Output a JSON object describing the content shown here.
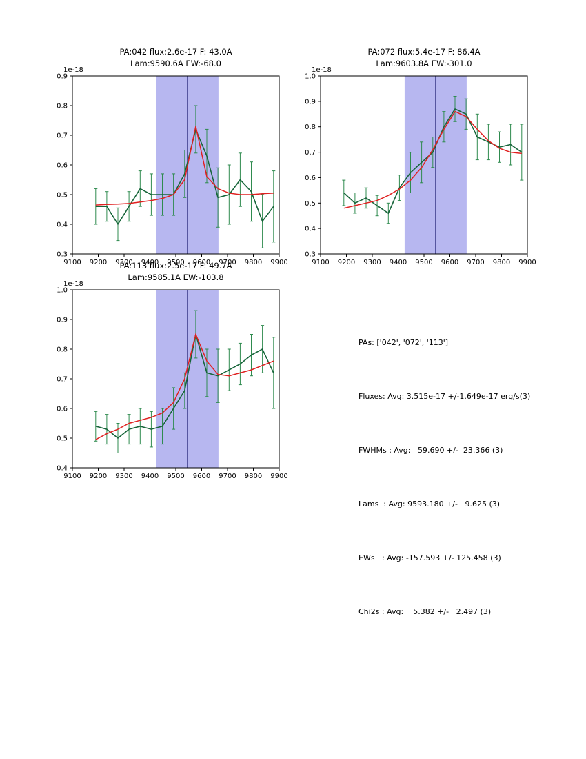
{
  "figure": {
    "background": "#ffffff"
  },
  "colors": {
    "band": "#b7b7f0",
    "vline": "#16166b",
    "data": "#17653a",
    "err": "#2f8b4f",
    "fit": "#e02020",
    "axis": "#000000"
  },
  "stats": {
    "lines": [
      "PAs: ['042', '072', '113']",
      "Fluxes: Avg: 3.515e-17 +/-1.649e-17 erg/s(3)",
      "FWHMs : Avg:   59.690 +/-  23.366 (3)",
      "Lams  : Avg: 9593.180 +/-   9.625 (3)",
      "EWs   : Avg: -157.593 +/- 125.458 (3)",
      "Chi2s : Avg:    5.382 +/-   2.497 (3)"
    ]
  },
  "chart_data": [
    {
      "type": "line",
      "title1": "PA:042 flux:2.6e-17 F: 43.0A",
      "title2": "Lam:9590.6A EW:-68.0",
      "offset_label": "1e-18",
      "xlim": [
        9100,
        9900
      ],
      "ylim": [
        0.3,
        0.9
      ],
      "xticks": [
        9100,
        9200,
        9300,
        9400,
        9500,
        9600,
        9700,
        9800,
        9900
      ],
      "yticks": [
        0.3,
        0.4,
        0.5,
        0.6,
        0.7,
        0.8,
        0.9
      ],
      "band": [
        9425,
        9665
      ],
      "vline": 9545,
      "x": [
        9190,
        9233,
        9276,
        9319,
        9362,
        9405,
        9448,
        9491,
        9534,
        9577,
        9620,
        9663,
        9706,
        9749,
        9792,
        9835,
        9878
      ],
      "series": [
        {
          "name": "spectrum",
          "values": [
            0.46,
            0.46,
            0.4,
            0.46,
            0.52,
            0.5,
            0.5,
            0.5,
            0.57,
            0.72,
            0.63,
            0.49,
            0.5,
            0.55,
            0.51,
            0.41,
            0.46
          ],
          "yerr": [
            0.06,
            0.05,
            0.055,
            0.05,
            0.06,
            0.07,
            0.07,
            0.07,
            0.08,
            0.08,
            0.09,
            0.1,
            0.1,
            0.09,
            0.1,
            0.09,
            0.12
          ]
        },
        {
          "name": "fit",
          "values": [
            0.465,
            0.467,
            0.468,
            0.47,
            0.475,
            0.48,
            0.487,
            0.5,
            0.55,
            0.73,
            0.56,
            0.52,
            0.505,
            0.5,
            0.5,
            0.503,
            0.505
          ]
        }
      ]
    },
    {
      "type": "line",
      "title1": "PA:072 flux:5.4e-17 F: 86.4A",
      "title2": "Lam:9603.8A EW:-301.0",
      "offset_label": "1e-18",
      "xlim": [
        9100,
        9900
      ],
      "ylim": [
        0.3,
        1.0
      ],
      "xticks": [
        9100,
        9200,
        9300,
        9400,
        9500,
        9600,
        9700,
        9800,
        9900
      ],
      "yticks": [
        0.3,
        0.4,
        0.5,
        0.6,
        0.7,
        0.8,
        0.9,
        1.0
      ],
      "band": [
        9425,
        9665
      ],
      "vline": 9545,
      "x": [
        9190,
        9233,
        9276,
        9319,
        9362,
        9405,
        9448,
        9491,
        9534,
        9577,
        9620,
        9663,
        9706,
        9749,
        9792,
        9835,
        9878
      ],
      "series": [
        {
          "name": "spectrum",
          "values": [
            0.54,
            0.5,
            0.52,
            0.49,
            0.46,
            0.56,
            0.62,
            0.66,
            0.7,
            0.8,
            0.87,
            0.85,
            0.76,
            0.74,
            0.72,
            0.73,
            0.7
          ],
          "yerr": [
            0.05,
            0.04,
            0.04,
            0.04,
            0.04,
            0.05,
            0.08,
            0.08,
            0.06,
            0.06,
            0.05,
            0.06,
            0.09,
            0.07,
            0.06,
            0.08,
            0.11
          ]
        },
        {
          "name": "fit",
          "values": [
            0.48,
            0.49,
            0.5,
            0.51,
            0.53,
            0.555,
            0.59,
            0.64,
            0.71,
            0.79,
            0.86,
            0.84,
            0.79,
            0.745,
            0.715,
            0.7,
            0.695
          ]
        }
      ]
    },
    {
      "type": "line",
      "title1": "PA:113 flux:2.5e-17 F: 49.7A",
      "title2": "Lam:9585.1A EW:-103.8",
      "offset_label": "1e-18",
      "xlim": [
        9100,
        9900
      ],
      "ylim": [
        0.4,
        1.0
      ],
      "xticks": [
        9100,
        9200,
        9300,
        9400,
        9500,
        9600,
        9700,
        9800,
        9900
      ],
      "yticks": [
        0.4,
        0.5,
        0.6,
        0.7,
        0.8,
        0.9,
        1.0
      ],
      "band": [
        9425,
        9665
      ],
      "vline": 9545,
      "x": [
        9190,
        9233,
        9276,
        9319,
        9362,
        9405,
        9448,
        9491,
        9534,
        9577,
        9620,
        9663,
        9706,
        9749,
        9792,
        9835,
        9878
      ],
      "series": [
        {
          "name": "spectrum",
          "values": [
            0.54,
            0.53,
            0.5,
            0.53,
            0.54,
            0.53,
            0.54,
            0.6,
            0.66,
            0.85,
            0.72,
            0.71,
            0.73,
            0.75,
            0.78,
            0.8,
            0.72
          ],
          "yerr": [
            0.05,
            0.05,
            0.05,
            0.05,
            0.06,
            0.06,
            0.06,
            0.07,
            0.06,
            0.08,
            0.08,
            0.09,
            0.07,
            0.07,
            0.07,
            0.08,
            0.12
          ]
        },
        {
          "name": "fit",
          "values": [
            0.495,
            0.515,
            0.53,
            0.55,
            0.56,
            0.57,
            0.585,
            0.62,
            0.7,
            0.85,
            0.76,
            0.715,
            0.71,
            0.72,
            0.73,
            0.745,
            0.76
          ]
        }
      ]
    }
  ]
}
